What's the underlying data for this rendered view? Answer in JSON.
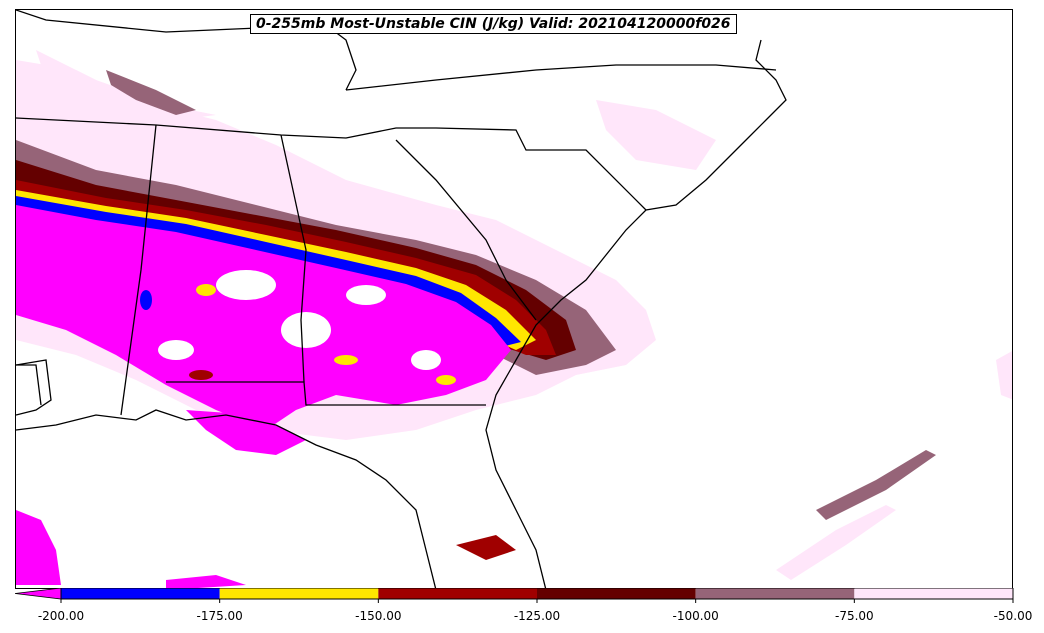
{
  "title": "0-255mb Most-Unstable CIN (J/kg) Valid: 202104120000f026",
  "colorbar": {
    "bins": [
      {
        "color": "#0000ff",
        "from": -200,
        "to": -175
      },
      {
        "color": "#ffe600",
        "from": -175,
        "to": -150
      },
      {
        "color": "#a00000",
        "from": -150,
        "to": -125
      },
      {
        "color": "#640000",
        "from": -125,
        "to": -100
      },
      {
        "color": "#966478",
        "from": -100,
        "to": -75
      },
      {
        "color": "#ffe6fa",
        "from": -75,
        "to": -50
      }
    ],
    "under_color": "#ff00ff",
    "tick_labels": [
      "-200.00",
      "-175.00",
      "-150.00",
      "-125.00",
      "-100.00",
      "-75.00",
      "-50.00"
    ]
  },
  "map": {
    "region": "Southeastern United States",
    "field_colors": {
      "magenta": "#ff00ff",
      "blue": "#0000ff",
      "yellow": "#ffe600",
      "red": "#a00000",
      "darkred": "#640000",
      "mauve": "#966478",
      "pink": "#ffe6fa"
    },
    "border_color": "#000000"
  }
}
